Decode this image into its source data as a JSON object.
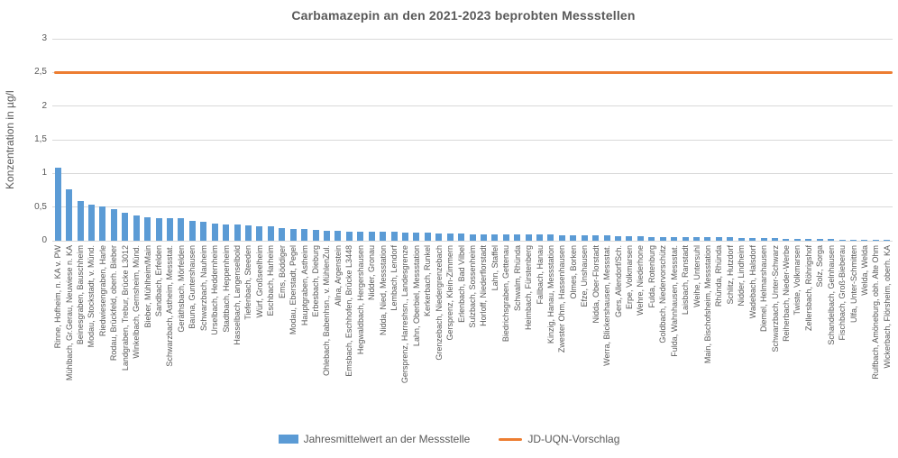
{
  "chart_data": {
    "type": "bar",
    "title": "Carbamazepin an den 2021-2023 beprobten Messstellen",
    "xlabel": "",
    "ylabel": "Konzentration in µg/l",
    "ylim": [
      0,
      3
    ],
    "grid": true,
    "legend_position": "bottom",
    "ytick_values": [
      0,
      0.5,
      1,
      1.5,
      2,
      2.5,
      3
    ],
    "ytick_labels": [
      "0",
      "0,5",
      "1",
      "1,5",
      "2",
      "2,5",
      "3"
    ],
    "colors": {
      "bar": "#5B9BD5",
      "reference_line": "#ED7D31",
      "text": "#595959",
      "grid": "#D9D9D9"
    },
    "categories": [
      "Rinne, Hofheim, n. KA v. PW",
      "Mühlbach, Gr.Gerau, Neuwiese n. KA",
      "Beinesgraben, Bauschheim",
      "Modau, Stockstadt, v. Münd.",
      "Riedwiesengraben, Harle",
      "Rodau, Brückfeld, oberh. Bieber",
      "Landgraben, Trebur, Brücke L3012",
      "Winkelbach, Gernsheim, Münd.",
      "Bieber, Mühlheim/Main",
      "Sandbach, Erfelden",
      "Schwarzbach, Astheim, Messstat.",
      "Geräthsbach, Mörfelden",
      "Bauna, Guntershausen",
      "Schwarzbach, Nauheim",
      "Urselbach, Heddernheim",
      "Stadtbach, Heppenheim",
      "Hasselbach, Langenselbold",
      "Tiefenbach, Steeden",
      "Würf, Großseelheim",
      "Eschbach, Harheim",
      "Ems, Böddiger",
      "Modau, Eberstadt, Pegel",
      "Hauptgraben, Astheim",
      "Erbesbach, Dieburg",
      "Ohlebach, Babenhsn., v. MühlenZul.",
      "Allna, Argenstein",
      "Emsbach, Eschhofen, Brücke L3448",
      "Hegwaldbach, Hergershausen",
      "Nidder, Gronau",
      "Nidda, Nied, Messstation",
      "Lembach, Lendorf",
      "Gersprenz, Harreshsn., Landesgrenze",
      "Lahn, Oberbiel, Messstation",
      "Kerkerbach, Runkel",
      "Grenzebach, Niedergrenzebach",
      "Gersprenz, Klein-Zimmern",
      "Erlenbach, Bad Vilbel",
      "Sulzbach, Sossenheim",
      "Horloff, Niederflorstadt",
      "Lahn, Staffel",
      "Biedrichsgraben, Gettenau",
      "Schwalm, Rhünda",
      "Heimbach, Fürstenberg",
      "Fallbach, Hanau",
      "Kinzig, Hanau, Messstation",
      "Zwester Ohm, Hassenhausen",
      "Olmes, Borken",
      "Efze, Unshausen",
      "Nidda, Ober-Florstadt",
      "Werra, Blickershausen, Messstat.",
      "Gers, Allendorf/Sch.",
      "Erpe, Volkmarsen",
      "Wehre, Niederhone",
      "Fulda, Rotenburg",
      "Goldbach, Niedervorschütz",
      "Fulda, Wahnhausen, Messstat.",
      "Laisbach, Ranstadt",
      "Weihe, Untersuhl",
      "Main, Bischofsheim, Messstation",
      "Rhünda, Rhünda",
      "Schlitz, Hutzdorf",
      "Nidder, Lindheim",
      "Wadebach, Halsdorf",
      "Diemel, Helmarshausen",
      "Schwarzbach, Unter-Schwarz",
      "Reiherbach, Nieder-Werbe",
      "Twiste, Volkmarsen",
      "Zellersbach, Röhrigshof",
      "Solz, Sorga",
      "Schandelbach, Gelnhausen",
      "Fischbach, Groß-Bieberau",
      "Ulfa, Unter-Schmitten",
      "Welda, Welda",
      "Rulfbach, Amöneburg, obh. Alte Ohm",
      "Wickerbach, Flörsheim, oberh. KA"
    ],
    "series": [
      {
        "name": "Jahresmittelwert an der Messstelle",
        "type": "bar",
        "color": "#5B9BD5",
        "values": [
          1.08,
          0.77,
          0.59,
          0.53,
          0.51,
          0.47,
          0.42,
          0.38,
          0.35,
          0.34,
          0.33,
          0.33,
          0.29,
          0.28,
          0.25,
          0.24,
          0.24,
          0.23,
          0.22,
          0.21,
          0.19,
          0.18,
          0.17,
          0.16,
          0.15,
          0.15,
          0.14,
          0.14,
          0.13,
          0.13,
          0.13,
          0.12,
          0.12,
          0.12,
          0.11,
          0.11,
          0.11,
          0.1,
          0.1,
          0.1,
          0.1,
          0.09,
          0.09,
          0.09,
          0.09,
          0.08,
          0.08,
          0.08,
          0.08,
          0.08,
          0.07,
          0.07,
          0.07,
          0.06,
          0.06,
          0.06,
          0.06,
          0.05,
          0.05,
          0.05,
          0.05,
          0.04,
          0.04,
          0.04,
          0.04,
          0.03,
          0.03,
          0.03,
          0.03,
          0.03,
          0.02,
          0.02,
          0.02,
          0.02,
          0.02
        ]
      },
      {
        "name": "JD-UQN-Vorschlag",
        "type": "line",
        "color": "#ED7D31",
        "value": 2.5
      }
    ]
  }
}
